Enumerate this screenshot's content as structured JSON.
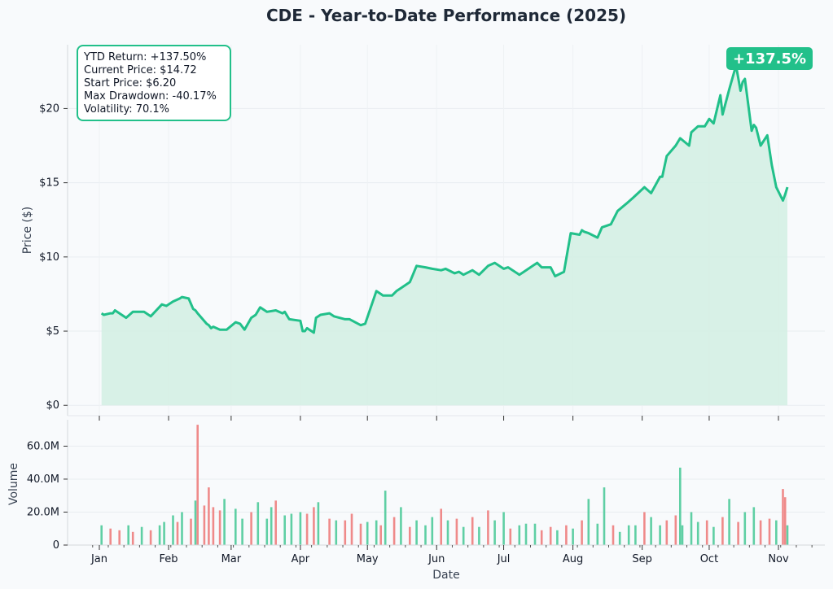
{
  "chart_data": [
    {
      "type": "area",
      "title": "CDE - Year-to-Date Performance (2025)",
      "ylabel": "Price ($)",
      "ylim": [
        -0.7,
        24.3
      ],
      "yticks": [
        0,
        5,
        10,
        15,
        20
      ],
      "ytick_labels": [
        "$0",
        "$5",
        "$10",
        "$15",
        "$20"
      ],
      "grid": true,
      "line_color": "#22c08a",
      "fill_color": "#d4efe4",
      "series": [
        {
          "x": [
            "2025-01-02",
            "2025-01-03",
            "2025-01-06",
            "2025-01-07",
            "2025-01-08",
            "2025-01-13",
            "2025-01-16",
            "2025-01-21",
            "2025-01-24",
            "2025-01-29",
            "2025-01-31",
            "2025-02-03",
            "2025-02-06",
            "2025-02-07",
            "2025-02-10",
            "2025-02-12",
            "2025-02-13",
            "2025-02-14",
            "2025-02-18",
            "2025-02-19",
            "2025-02-20",
            "2025-02-21",
            "2025-02-24",
            "2025-02-27",
            "2025-03-03",
            "2025-03-05",
            "2025-03-07",
            "2025-03-10",
            "2025-03-12",
            "2025-03-14",
            "2025-03-17",
            "2025-03-21",
            "2025-03-24",
            "2025-03-25",
            "2025-03-27",
            "2025-04-01",
            "2025-04-02",
            "2025-04-03",
            "2025-04-04",
            "2025-04-07",
            "2025-04-08",
            "2025-04-10",
            "2025-04-14",
            "2025-04-16",
            "2025-04-21",
            "2025-04-23",
            "2025-04-28",
            "2025-04-30",
            "2025-05-05",
            "2025-05-07",
            "2025-05-08",
            "2025-05-12",
            "2025-05-14",
            "2025-05-16",
            "2025-05-20",
            "2025-05-23",
            "2025-05-27",
            "2025-05-30",
            "2025-06-03",
            "2025-06-05",
            "2025-06-09",
            "2025-06-11",
            "2025-06-13",
            "2025-06-17",
            "2025-06-20",
            "2025-06-24",
            "2025-06-27",
            "2025-07-01",
            "2025-07-03",
            "2025-07-08",
            "2025-07-10",
            "2025-07-14",
            "2025-07-16",
            "2025-07-18",
            "2025-07-22",
            "2025-07-24",
            "2025-07-28",
            "2025-07-31",
            "2025-08-04",
            "2025-08-05",
            "2025-08-06",
            "2025-08-08",
            "2025-08-12",
            "2025-08-14",
            "2025-08-18",
            "2025-08-21",
            "2025-08-25",
            "2025-08-28",
            "2025-09-02",
            "2025-09-05",
            "2025-09-09",
            "2025-09-10",
            "2025-09-12",
            "2025-09-16",
            "2025-09-18",
            "2025-09-22",
            "2025-09-23",
            "2025-09-26",
            "2025-09-29",
            "2025-10-01",
            "2025-10-03",
            "2025-10-06",
            "2025-10-07",
            "2025-10-10",
            "2025-10-13",
            "2025-10-15",
            "2025-10-16",
            "2025-10-17",
            "2025-10-20",
            "2025-10-21",
            "2025-10-22",
            "2025-10-24",
            "2025-10-27",
            "2025-10-29",
            "2025-10-31",
            "2025-11-03",
            "2025-11-04",
            "2025-11-05"
          ],
          "values": [
            6.2,
            6.1,
            6.2,
            6.2,
            6.4,
            5.9,
            6.3,
            6.3,
            6.0,
            6.8,
            6.7,
            7.0,
            7.2,
            7.3,
            7.2,
            6.5,
            6.4,
            6.2,
            5.5,
            5.4,
            5.2,
            5.3,
            5.1,
            5.1,
            5.6,
            5.5,
            5.1,
            5.9,
            6.1,
            6.6,
            6.3,
            6.4,
            6.2,
            6.3,
            5.8,
            5.7,
            5.0,
            5.0,
            5.2,
            4.9,
            5.9,
            6.1,
            6.2,
            6.0,
            5.8,
            5.8,
            5.4,
            5.5,
            7.7,
            7.5,
            7.4,
            7.4,
            7.7,
            7.9,
            8.3,
            9.4,
            9.3,
            9.2,
            9.1,
            9.2,
            8.9,
            9.0,
            8.8,
            9.1,
            8.8,
            9.4,
            9.6,
            9.2,
            9.3,
            8.8,
            9.0,
            9.4,
            9.6,
            9.3,
            9.3,
            8.7,
            9.0,
            11.6,
            11.5,
            11.8,
            11.7,
            11.6,
            11.3,
            12.0,
            12.2,
            13.1,
            13.6,
            14.0,
            14.7,
            14.3,
            15.4,
            15.4,
            16.8,
            17.5,
            18.0,
            17.5,
            18.4,
            18.8,
            18.8,
            19.3,
            19.0,
            20.9,
            19.6,
            21.3,
            22.9,
            21.2,
            21.8,
            22.0,
            18.5,
            18.9,
            18.7,
            17.5,
            18.2,
            16.2,
            14.7,
            13.8,
            14.2,
            14.7
          ]
        }
      ],
      "annotation": "+137.5%",
      "stats": {
        "ytd_return": "YTD Return: +137.50%",
        "current_price": "Current Price: $14.72",
        "start_price": "Start Price: $6.20",
        "max_drawdown": "Max Drawdown: -40.17%",
        "volatility": "Volatility: 70.1%"
      }
    },
    {
      "type": "bar",
      "xlabel": "Date",
      "ylabel": "Volume",
      "ylim": [
        0,
        76000000
      ],
      "yticks": [
        0,
        20000000,
        40000000,
        60000000
      ],
      "ytick_labels": [
        "0",
        "20.0M",
        "40.0M",
        "60.0M"
      ],
      "xticks": [
        "2025-01-01",
        "2025-02-01",
        "2025-03-01",
        "2025-04-01",
        "2025-05-01",
        "2025-06-01",
        "2025-07-01",
        "2025-08-01",
        "2025-09-01",
        "2025-10-01",
        "2025-11-01"
      ],
      "xtick_labels": [
        "Jan",
        "Feb",
        "Mar",
        "Apr",
        "May",
        "Jun",
        "Jul",
        "Aug",
        "Sep",
        "Oct",
        "Nov"
      ],
      "up_color": "#5fcfa4",
      "down_color": "#ef8a8a",
      "series": [
        {
          "x": [
            "2025-01-02",
            "2025-01-06",
            "2025-01-10",
            "2025-01-14",
            "2025-01-16",
            "2025-01-20",
            "2025-01-24",
            "2025-01-28",
            "2025-01-30",
            "2025-02-03",
            "2025-02-05",
            "2025-02-07",
            "2025-02-11",
            "2025-02-13",
            "2025-02-14",
            "2025-02-17",
            "2025-02-19",
            "2025-02-21",
            "2025-02-24",
            "2025-02-26",
            "2025-03-03",
            "2025-03-06",
            "2025-03-10",
            "2025-03-13",
            "2025-03-17",
            "2025-03-19",
            "2025-03-21",
            "2025-03-25",
            "2025-03-28",
            "2025-04-01",
            "2025-04-04",
            "2025-04-07",
            "2025-04-09",
            "2025-04-14",
            "2025-04-17",
            "2025-04-21",
            "2025-04-24",
            "2025-04-28",
            "2025-05-01",
            "2025-05-05",
            "2025-05-07",
            "2025-05-09",
            "2025-05-13",
            "2025-05-16",
            "2025-05-20",
            "2025-05-23",
            "2025-05-27",
            "2025-05-30",
            "2025-06-03",
            "2025-06-06",
            "2025-06-10",
            "2025-06-13",
            "2025-06-17",
            "2025-06-20",
            "2025-06-24",
            "2025-06-27",
            "2025-07-01",
            "2025-07-04",
            "2025-07-08",
            "2025-07-11",
            "2025-07-15",
            "2025-07-18",
            "2025-07-22",
            "2025-07-25",
            "2025-07-29",
            "2025-08-01",
            "2025-08-05",
            "2025-08-08",
            "2025-08-12",
            "2025-08-15",
            "2025-08-19",
            "2025-08-22",
            "2025-08-26",
            "2025-08-29",
            "2025-09-02",
            "2025-09-05",
            "2025-09-09",
            "2025-09-12",
            "2025-09-16",
            "2025-09-18",
            "2025-09-19",
            "2025-09-23",
            "2025-09-26",
            "2025-09-30",
            "2025-10-03",
            "2025-10-07",
            "2025-10-10",
            "2025-10-14",
            "2025-10-17",
            "2025-10-21",
            "2025-10-24",
            "2025-10-28",
            "2025-10-31",
            "2025-11-03",
            "2025-11-04",
            "2025-11-05"
          ],
          "values": [
            12000000,
            10000000,
            9000000,
            12000000,
            8000000,
            11000000,
            9000000,
            12000000,
            14000000,
            18000000,
            14000000,
            20000000,
            16000000,
            27000000,
            73000000,
            24000000,
            35000000,
            23000000,
            21000000,
            28000000,
            22000000,
            16000000,
            20000000,
            26000000,
            16000000,
            23000000,
            27000000,
            18000000,
            19000000,
            20000000,
            19000000,
            23000000,
            26000000,
            16000000,
            15000000,
            15000000,
            19000000,
            13000000,
            14000000,
            15000000,
            12000000,
            33000000,
            17000000,
            23000000,
            11000000,
            15000000,
            12000000,
            17000000,
            22000000,
            15000000,
            16000000,
            11000000,
            17000000,
            11000000,
            21000000,
            15000000,
            20000000,
            10000000,
            12000000,
            13000000,
            13000000,
            9000000,
            11000000,
            9000000,
            12000000,
            10000000,
            15000000,
            28000000,
            13000000,
            35000000,
            12000000,
            8000000,
            12000000,
            12000000,
            20000000,
            17000000,
            12000000,
            15000000,
            18000000,
            47000000,
            12000000,
            20000000,
            14000000,
            15000000,
            11000000,
            17000000,
            28000000,
            14000000,
            20000000,
            23000000,
            15000000,
            16000000,
            15000000,
            34000000,
            29000000,
            12000000
          ],
          "up": [
            true,
            false,
            false,
            true,
            false,
            true,
            false,
            true,
            true,
            true,
            false,
            true,
            false,
            true,
            false,
            false,
            false,
            false,
            false,
            true,
            true,
            true,
            false,
            true,
            true,
            true,
            false,
            true,
            true,
            true,
            false,
            false,
            true,
            false,
            true,
            false,
            false,
            false,
            true,
            true,
            false,
            true,
            false,
            true,
            false,
            true,
            true,
            true,
            false,
            true,
            false,
            true,
            false,
            true,
            false,
            true,
            true,
            false,
            true,
            true,
            true,
            false,
            false,
            true,
            false,
            true,
            false,
            true,
            true,
            true,
            false,
            true,
            true,
            true,
            false,
            true,
            true,
            false,
            false,
            true,
            true,
            true,
            true,
            false,
            true,
            false,
            true,
            false,
            true,
            true,
            false,
            false,
            true,
            false,
            false,
            true
          ]
        }
      ]
    }
  ]
}
